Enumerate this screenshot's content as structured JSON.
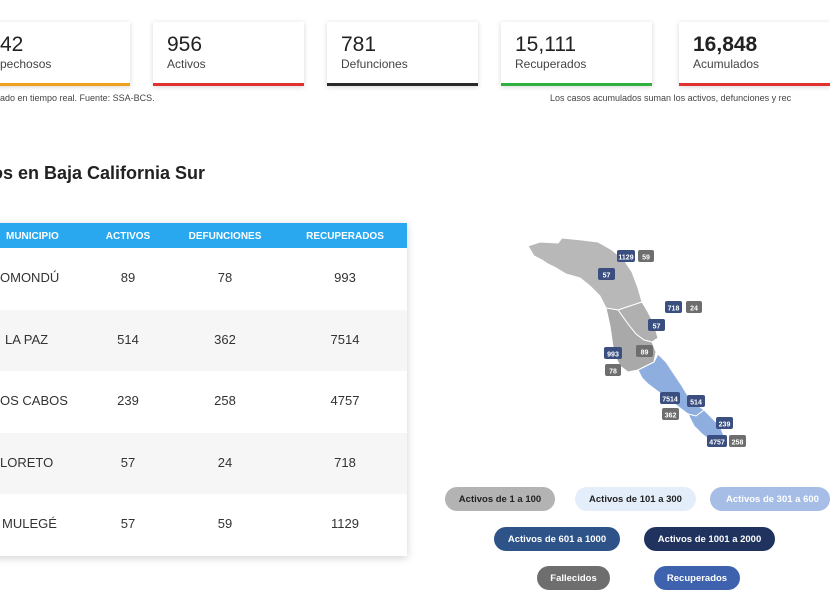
{
  "cards": [
    {
      "value": "42",
      "label": "pechosos",
      "color": "#f0a020"
    },
    {
      "value": "956",
      "label": "Activos",
      "color": "#e03030"
    },
    {
      "value": "781",
      "label": "Defunciones",
      "color": "#2a2a2a"
    },
    {
      "value": "15,111",
      "label": "Recuperados",
      "color": "#30b040"
    },
    {
      "value": "16,848",
      "label": "Acumulados",
      "color": "#e03030"
    }
  ],
  "notes": {
    "left": "ado en tiempo real. Fuente: SSA-BCS.",
    "right": "Los casos acumulados suman los activos, defunciones y rec"
  },
  "section_title": "os en Baja California Sur",
  "table": {
    "headers": [
      "MUNICIPIO",
      "ACTIVOS",
      "DEFUNCIONES",
      "RECUPERADOS"
    ],
    "rows": [
      [
        "OMONDÚ",
        "89",
        "78",
        "993"
      ],
      [
        "LA PAZ",
        "514",
        "362",
        "7514"
      ],
      [
        "OS CABOS",
        "239",
        "258",
        "4757"
      ],
      [
        "LORETO",
        "57",
        "24",
        "718"
      ],
      [
        "MULEGÉ",
        "57",
        "59",
        "1129"
      ]
    ]
  },
  "map": {
    "badges": {
      "mulege_active": "1129",
      "mulege_deaths": "59",
      "mulege_west": "57",
      "loreto_active": "718",
      "loreto_deaths": "24",
      "loreto_mid": "57",
      "comondu_active": "993",
      "comondu_deaths": "78",
      "comondu_mid": "89",
      "lapaz_active": "7514",
      "lapaz_deaths": "362",
      "lapaz_mid": "514",
      "loscabos_mid": "239",
      "loscabos_active": "4757",
      "loscabos_deaths": "258"
    },
    "colors": {
      "gray_region": "#b8b8b8",
      "blue_region": "#8eaee0",
      "badge_dark": "#3a4f80",
      "badge_gray": "#6e6e6e"
    }
  },
  "legend": [
    {
      "label": "Activos de 1 a 100",
      "bg": "#b3b3b3",
      "fg": "#222222"
    },
    {
      "label": "Activos de 101 a 300",
      "bg": "#e3eefa",
      "fg": "#222222"
    },
    {
      "label": "Activos de 301 a 600",
      "bg": "#a6bde6",
      "fg": "#ffffff"
    },
    {
      "label": "Activos de 601 a 1000",
      "bg": "#2d5388",
      "fg": "#ffffff"
    },
    {
      "label": "Activos de 1001 a 2000",
      "bg": "#1f335e",
      "fg": "#ffffff"
    },
    {
      "label": "Fallecidos",
      "bg": "#6e6e6e",
      "fg": "#ffffff"
    },
    {
      "label": "Recuperados",
      "bg": "#3e62ad",
      "fg": "#ffffff"
    }
  ]
}
